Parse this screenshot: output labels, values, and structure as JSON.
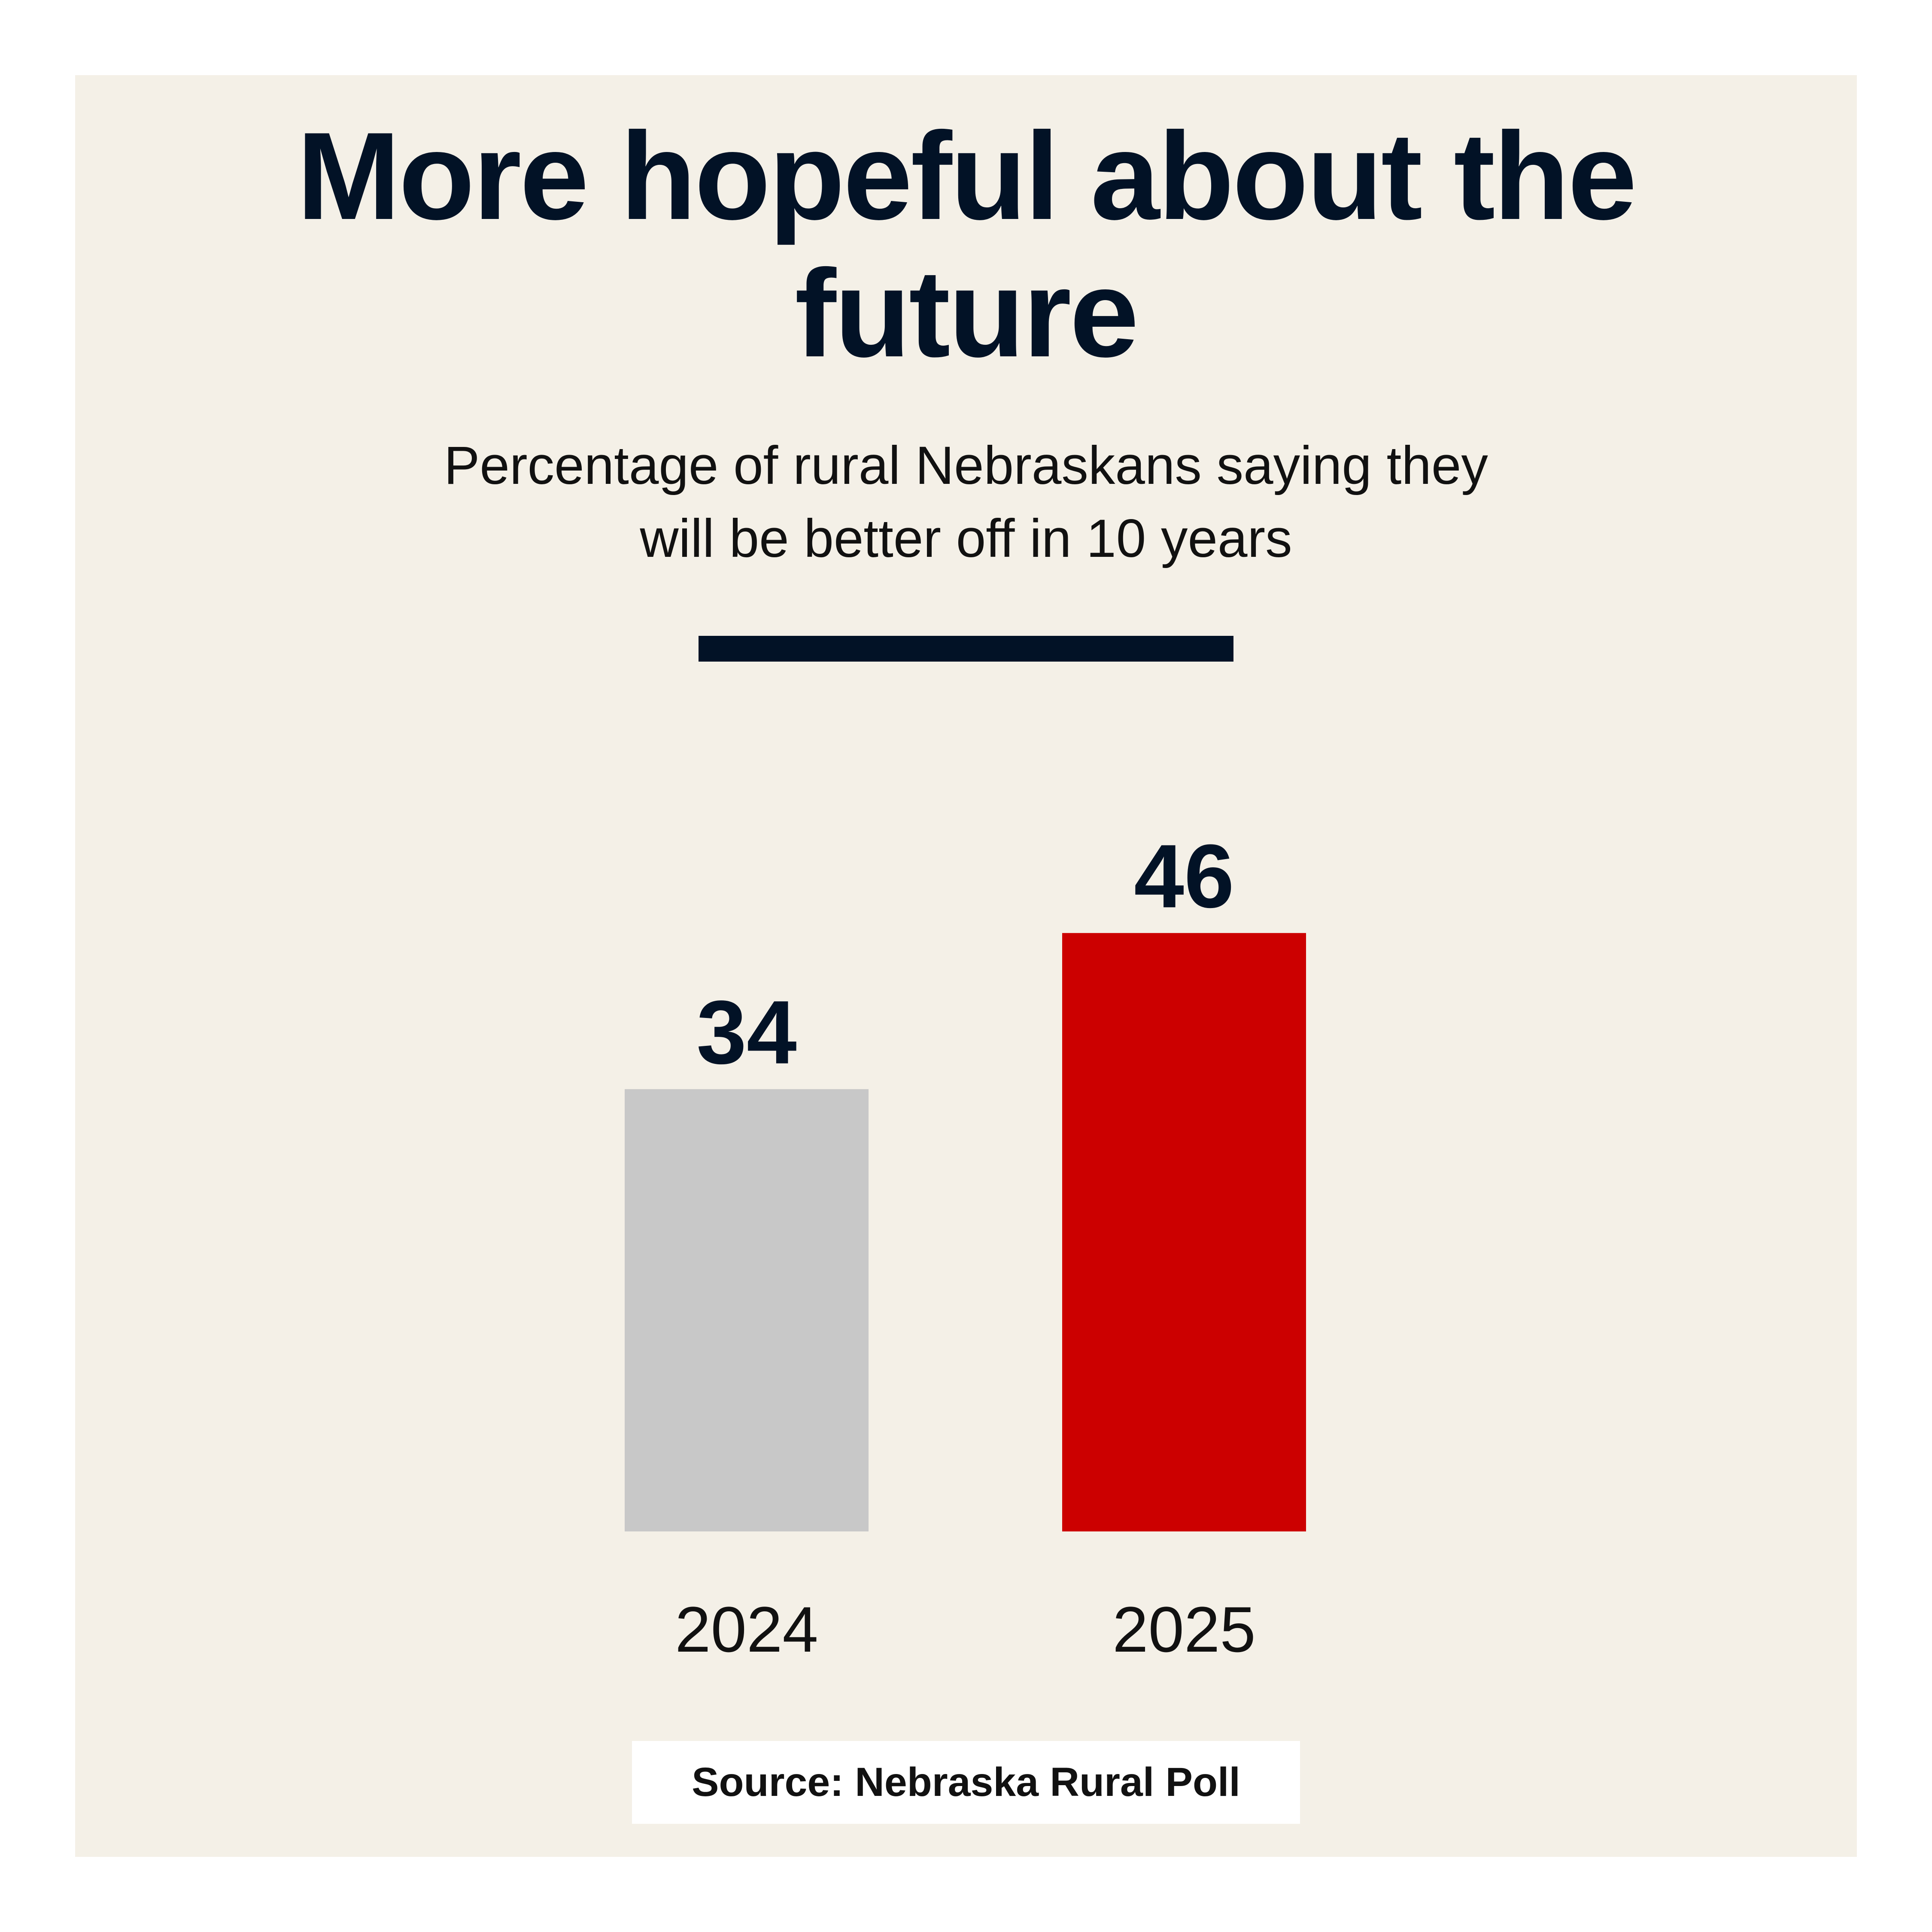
{
  "chart_data": {
    "type": "bar",
    "title": "More hopeful about the future",
    "subtitle": "Percentage of rural Nebraskans saying they will be better off in 10 years",
    "categories": [
      "2024",
      "2025"
    ],
    "values": [
      34,
      46
    ],
    "colors": [
      "#c8c8c8",
      "#cc0000"
    ],
    "source": "Source: Nebraska Rural Poll"
  }
}
